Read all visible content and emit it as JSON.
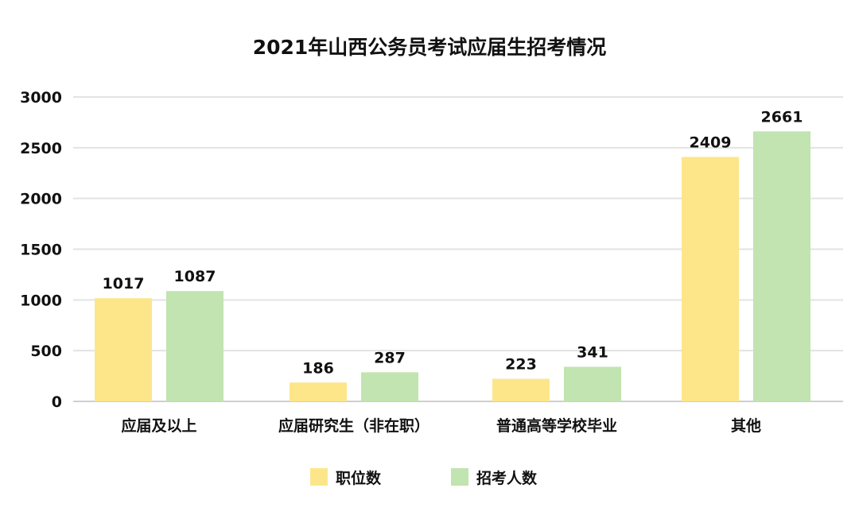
{
  "chart_data": {
    "type": "bar",
    "title": "2021年山西公务员考试应届生招考情况",
    "xlabel": "",
    "ylabel": "",
    "ylim": [
      0,
      3000
    ],
    "yticks": [
      0,
      500,
      1000,
      1500,
      2000,
      2500,
      3000
    ],
    "grid": true,
    "legend_position": "bottom",
    "categories": [
      "应届及以上",
      "应届研究生（非在职）",
      "普通高等学校毕业",
      "其他"
    ],
    "series": [
      {
        "name": "职位数",
        "color": "#fde68a",
        "values": [
          1017,
          186,
          223,
          2409
        ]
      },
      {
        "name": "招考人数",
        "color": "#c1e4b0",
        "values": [
          1087,
          287,
          341,
          2661
        ]
      }
    ]
  }
}
